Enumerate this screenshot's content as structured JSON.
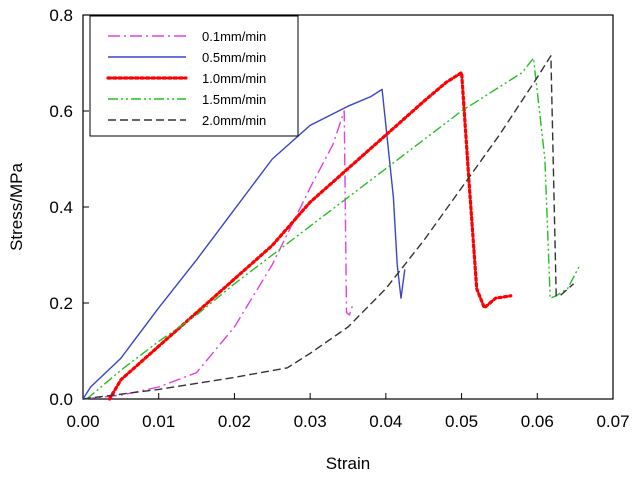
{
  "chart_data": {
    "type": "line",
    "xlabel": "Strain",
    "ylabel": "Stress/MPa",
    "xlim": [
      0,
      0.07
    ],
    "ylim": [
      0,
      0.8
    ],
    "xticks": [
      "0.00",
      "0.01",
      "0.02",
      "0.03",
      "0.04",
      "0.05",
      "0.06",
      "0.07"
    ],
    "yticks": [
      "0.0",
      "0.2",
      "0.4",
      "0.6",
      "0.8"
    ],
    "grid": false,
    "legend_position": "top-left",
    "series": [
      {
        "name": "0.1mm/min",
        "color": "#e040e0",
        "dash": "dash-dot",
        "points": [
          [
            0.0,
            0.0
          ],
          [
            0.005,
            0.008
          ],
          [
            0.01,
            0.025
          ],
          [
            0.015,
            0.055
          ],
          [
            0.02,
            0.15
          ],
          [
            0.025,
            0.28
          ],
          [
            0.03,
            0.44
          ],
          [
            0.033,
            0.53
          ],
          [
            0.0345,
            0.6
          ],
          [
            0.0348,
            0.18
          ],
          [
            0.0352,
            0.175
          ],
          [
            0.0357,
            0.2
          ]
        ]
      },
      {
        "name": "0.5mm/min",
        "color": "#3a45c8",
        "dash": "solid",
        "points": [
          [
            0.0,
            0.0
          ],
          [
            0.001,
            0.025
          ],
          [
            0.005,
            0.085
          ],
          [
            0.01,
            0.19
          ],
          [
            0.015,
            0.29
          ],
          [
            0.02,
            0.395
          ],
          [
            0.025,
            0.5
          ],
          [
            0.03,
            0.57
          ],
          [
            0.035,
            0.61
          ],
          [
            0.038,
            0.63
          ],
          [
            0.0395,
            0.645
          ],
          [
            0.041,
            0.42
          ],
          [
            0.0415,
            0.28
          ],
          [
            0.042,
            0.21
          ],
          [
            0.0425,
            0.27
          ]
        ]
      },
      {
        "name": "1.0mm/min",
        "color": "#ff0000",
        "dash": "dotted",
        "points": [
          [
            0.0035,
            0.0
          ],
          [
            0.005,
            0.04
          ],
          [
            0.01,
            0.11
          ],
          [
            0.015,
            0.18
          ],
          [
            0.02,
            0.25
          ],
          [
            0.025,
            0.32
          ],
          [
            0.03,
            0.41
          ],
          [
            0.035,
            0.48
          ],
          [
            0.04,
            0.55
          ],
          [
            0.045,
            0.62
          ],
          [
            0.048,
            0.66
          ],
          [
            0.05,
            0.68
          ],
          [
            0.051,
            0.45
          ],
          [
            0.052,
            0.23
          ],
          [
            0.053,
            0.19
          ],
          [
            0.0545,
            0.21
          ],
          [
            0.0565,
            0.215
          ]
        ]
      },
      {
        "name": "1.5mm/min",
        "color": "#22c022",
        "dash": "dash-dot-dot",
        "points": [
          [
            0.0005,
            0.0
          ],
          [
            0.005,
            0.06
          ],
          [
            0.01,
            0.12
          ],
          [
            0.015,
            0.175
          ],
          [
            0.02,
            0.24
          ],
          [
            0.025,
            0.3
          ],
          [
            0.03,
            0.36
          ],
          [
            0.035,
            0.42
          ],
          [
            0.04,
            0.48
          ],
          [
            0.045,
            0.54
          ],
          [
            0.05,
            0.6
          ],
          [
            0.055,
            0.65
          ],
          [
            0.058,
            0.68
          ],
          [
            0.0595,
            0.71
          ],
          [
            0.061,
            0.5
          ],
          [
            0.0617,
            0.21
          ],
          [
            0.0625,
            0.215
          ],
          [
            0.064,
            0.23
          ],
          [
            0.0655,
            0.275
          ]
        ]
      },
      {
        "name": "2.0mm/min",
        "color": "#333333",
        "dash": "dashed",
        "points": [
          [
            0.0,
            0.0
          ],
          [
            0.01,
            0.02
          ],
          [
            0.02,
            0.045
          ],
          [
            0.027,
            0.065
          ],
          [
            0.03,
            0.095
          ],
          [
            0.035,
            0.15
          ],
          [
            0.04,
            0.23
          ],
          [
            0.045,
            0.33
          ],
          [
            0.05,
            0.44
          ],
          [
            0.055,
            0.55
          ],
          [
            0.06,
            0.67
          ],
          [
            0.0618,
            0.715
          ],
          [
            0.0625,
            0.215
          ],
          [
            0.063,
            0.215
          ],
          [
            0.0648,
            0.24
          ]
        ]
      }
    ]
  }
}
